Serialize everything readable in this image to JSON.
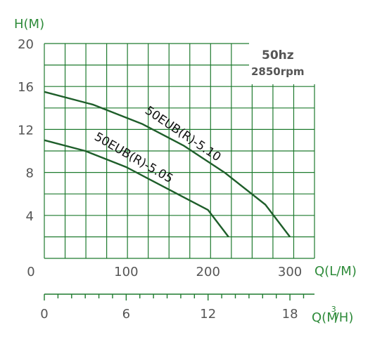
{
  "chart_data": {
    "type": "line",
    "ylabel": "H(M)",
    "xlabel": "Q(L/M)",
    "x2label": "Q(M³/H)",
    "x2label_main": "Q(M",
    "x2label_sup": "3",
    "x2label_end": "/H)",
    "xlim": [
      0,
      330
    ],
    "ylim": [
      0,
      20
    ],
    "y_ticks": [
      {
        "value": 4,
        "label": "4"
      },
      {
        "value": 8,
        "label": "8"
      },
      {
        "value": 12,
        "label": "12"
      },
      {
        "value": 16,
        "label": "16"
      },
      {
        "value": 20,
        "label": "20"
      }
    ],
    "x_ticks": [
      {
        "value": 0,
        "label": "0"
      },
      {
        "value": 100,
        "label": "100"
      },
      {
        "value": 200,
        "label": "200"
      },
      {
        "value": 300,
        "label": "300"
      }
    ],
    "x2_ticks": [
      {
        "value": 0,
        "label": "0"
      },
      {
        "value": 6,
        "label": "6"
      },
      {
        "value": 12,
        "label": "12"
      },
      {
        "value": 18,
        "label": "18"
      }
    ],
    "grid": true,
    "info_box": {
      "frequency": "50hz",
      "speed": "2850rpm"
    },
    "series": [
      {
        "name": "50EUB(R)-5.10",
        "x": [
          0,
          60,
          120,
          170,
          220,
          270,
          300
        ],
        "y": [
          15.5,
          14.3,
          12.5,
          10.5,
          8.0,
          5.0,
          2.0
        ]
      },
      {
        "name": "50EUB(R)-5.05",
        "x": [
          0,
          50,
          100,
          150,
          200,
          225
        ],
        "y": [
          11.0,
          10.0,
          8.5,
          6.5,
          4.5,
          2.0
        ]
      }
    ],
    "colors": {
      "grid": "#1e7a2e",
      "curve": "#1e5e2a",
      "axis_title": "#2e8b3a",
      "tick": "#555555"
    }
  }
}
